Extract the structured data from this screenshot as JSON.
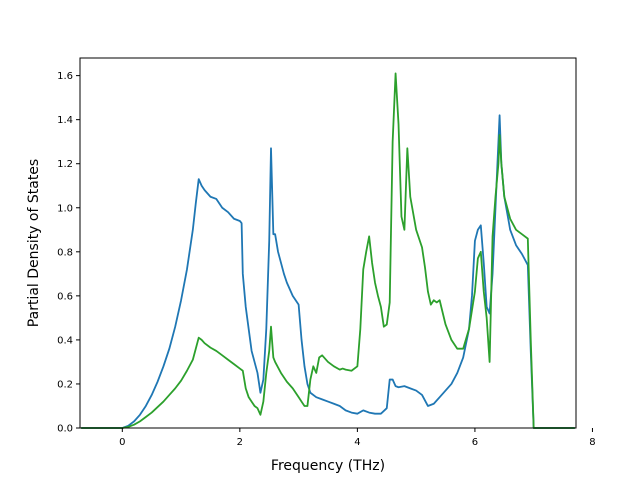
{
  "chart_data": {
    "type": "line",
    "title": "",
    "xlabel": "Frequency (THz)",
    "ylabel": "Partial Density of States",
    "xlim": [
      -0.72,
      7.72
    ],
    "ylim": [
      0.0,
      1.68
    ],
    "xticks": [
      0,
      2,
      4,
      6,
      8
    ],
    "xtick_labels": [
      "0",
      "2",
      "4",
      "6",
      "8"
    ],
    "yticks": [
      0.0,
      0.2,
      0.4,
      0.6,
      0.8,
      1.0,
      1.2,
      1.4,
      1.6
    ],
    "ytick_labels": [
      "0.0",
      "0.2",
      "0.4",
      "0.6",
      "0.8",
      "1.0",
      "1.2",
      "1.4",
      "1.6"
    ],
    "grid": false,
    "legend": "none",
    "series": [
      {
        "color": "#1f77b4",
        "x": [
          -0.7,
          -0.3,
          0.0,
          0.1,
          0.2,
          0.3,
          0.4,
          0.5,
          0.6,
          0.7,
          0.8,
          0.9,
          1.0,
          1.1,
          1.2,
          1.25,
          1.3,
          1.35,
          1.4,
          1.5,
          1.6,
          1.65,
          1.7,
          1.8,
          1.9,
          2.0,
          2.03,
          2.05,
          2.1,
          2.15,
          2.2,
          2.25,
          2.3,
          2.35,
          2.4,
          2.45,
          2.5,
          2.53,
          2.57,
          2.6,
          2.65,
          2.7,
          2.75,
          2.8,
          2.9,
          3.0,
          3.05,
          3.1,
          3.15,
          3.2,
          3.3,
          3.4,
          3.5,
          3.6,
          3.7,
          3.8,
          3.9,
          4.0,
          4.1,
          4.2,
          4.3,
          4.4,
          4.5,
          4.55,
          4.6,
          4.65,
          4.7,
          4.8,
          4.9,
          5.0,
          5.1,
          5.2,
          5.3,
          5.4,
          5.5,
          5.6,
          5.7,
          5.8,
          5.9,
          5.95,
          6.0,
          6.05,
          6.1,
          6.15,
          6.2,
          6.25,
          6.3,
          6.35,
          6.4,
          6.42,
          6.45,
          6.5,
          6.6,
          6.7,
          6.8,
          6.9,
          6.95,
          7.0,
          7.1,
          7.5,
          7.7
        ],
        "y": [
          0.0,
          0.0,
          0.0,
          0.01,
          0.03,
          0.06,
          0.1,
          0.15,
          0.21,
          0.28,
          0.36,
          0.46,
          0.58,
          0.72,
          0.9,
          1.02,
          1.13,
          1.1,
          1.08,
          1.05,
          1.04,
          1.02,
          1.0,
          0.98,
          0.95,
          0.94,
          0.93,
          0.7,
          0.55,
          0.45,
          0.35,
          0.3,
          0.25,
          0.16,
          0.22,
          0.45,
          0.85,
          1.27,
          0.88,
          0.88,
          0.8,
          0.75,
          0.7,
          0.66,
          0.6,
          0.56,
          0.4,
          0.28,
          0.2,
          0.16,
          0.14,
          0.13,
          0.12,
          0.11,
          0.1,
          0.08,
          0.07,
          0.065,
          0.08,
          0.07,
          0.065,
          0.065,
          0.09,
          0.22,
          0.22,
          0.19,
          0.185,
          0.19,
          0.18,
          0.17,
          0.15,
          0.1,
          0.11,
          0.14,
          0.17,
          0.2,
          0.25,
          0.32,
          0.45,
          0.6,
          0.85,
          0.9,
          0.92,
          0.75,
          0.55,
          0.52,
          0.7,
          1.0,
          1.3,
          1.42,
          1.2,
          1.05,
          0.9,
          0.83,
          0.79,
          0.74,
          0.35,
          0.0,
          0.0,
          0.0,
          0.0
        ]
      },
      {
        "color": "#2ca02c",
        "x": [
          -0.7,
          -0.3,
          0.0,
          0.1,
          0.2,
          0.3,
          0.4,
          0.5,
          0.6,
          0.7,
          0.8,
          0.9,
          1.0,
          1.1,
          1.2,
          1.25,
          1.3,
          1.35,
          1.4,
          1.5,
          1.6,
          1.7,
          1.8,
          1.9,
          2.0,
          2.05,
          2.1,
          2.15,
          2.2,
          2.25,
          2.3,
          2.35,
          2.4,
          2.45,
          2.5,
          2.53,
          2.57,
          2.6,
          2.7,
          2.8,
          2.9,
          3.0,
          3.05,
          3.1,
          3.15,
          3.2,
          3.25,
          3.3,
          3.35,
          3.4,
          3.5,
          3.6,
          3.7,
          3.75,
          3.8,
          3.9,
          4.0,
          4.05,
          4.1,
          4.15,
          4.2,
          4.25,
          4.3,
          4.35,
          4.4,
          4.45,
          4.5,
          4.55,
          4.6,
          4.65,
          4.7,
          4.75,
          4.8,
          4.85,
          4.9,
          5.0,
          5.1,
          5.15,
          5.2,
          5.25,
          5.3,
          5.35,
          5.4,
          5.5,
          5.6,
          5.7,
          5.8,
          5.9,
          6.0,
          6.05,
          6.1,
          6.15,
          6.2,
          6.25,
          6.3,
          6.35,
          6.4,
          6.42,
          6.45,
          6.5,
          6.6,
          6.7,
          6.8,
          6.9,
          6.95,
          7.0,
          7.1,
          7.5,
          7.7
        ],
        "y": [
          0.0,
          0.0,
          0.0,
          0.005,
          0.015,
          0.03,
          0.05,
          0.07,
          0.095,
          0.12,
          0.15,
          0.18,
          0.215,
          0.26,
          0.31,
          0.36,
          0.41,
          0.4,
          0.385,
          0.365,
          0.35,
          0.33,
          0.31,
          0.29,
          0.27,
          0.26,
          0.18,
          0.14,
          0.12,
          0.1,
          0.09,
          0.06,
          0.12,
          0.25,
          0.35,
          0.46,
          0.32,
          0.3,
          0.25,
          0.21,
          0.18,
          0.14,
          0.12,
          0.1,
          0.1,
          0.22,
          0.28,
          0.25,
          0.32,
          0.33,
          0.3,
          0.28,
          0.265,
          0.27,
          0.265,
          0.26,
          0.28,
          0.45,
          0.72,
          0.8,
          0.87,
          0.75,
          0.66,
          0.6,
          0.55,
          0.46,
          0.47,
          0.57,
          1.3,
          1.61,
          1.38,
          0.96,
          0.9,
          1.27,
          1.05,
          0.9,
          0.82,
          0.73,
          0.62,
          0.56,
          0.58,
          0.57,
          0.58,
          0.47,
          0.4,
          0.36,
          0.36,
          0.45,
          0.62,
          0.77,
          0.8,
          0.62,
          0.5,
          0.3,
          0.87,
          1.05,
          1.2,
          1.33,
          1.2,
          1.05,
          0.95,
          0.9,
          0.88,
          0.86,
          0.4,
          0.0,
          0.0,
          0.0,
          0.0
        ]
      }
    ]
  }
}
